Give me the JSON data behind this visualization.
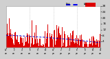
{
  "bg_color": "#d0d0d0",
  "plot_bg_color": "#ffffff",
  "bar_color": "#dd0000",
  "median_color": "#0000cc",
  "n_points": 1440,
  "vline_positions": [
    0.25,
    0.5,
    0.75
  ],
  "vline_color": "#aaaaaa",
  "ylim": [
    0,
    28
  ],
  "ytick_values": [
    4,
    8,
    12,
    16,
    20,
    24,
    28
  ],
  "seed": 7,
  "legend_median_color": "#0000ee",
  "legend_actual_color": "#dd0000"
}
